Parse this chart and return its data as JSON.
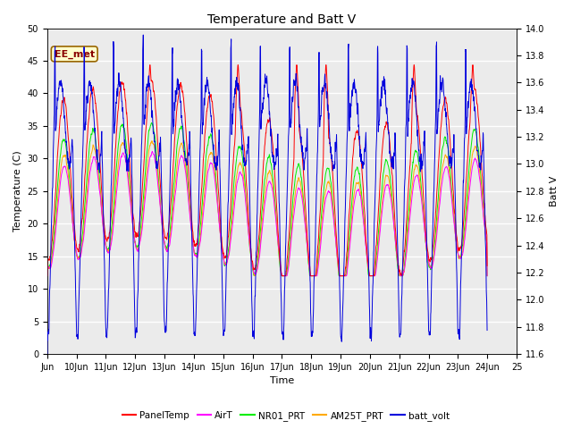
{
  "title": "Temperature and Batt V",
  "xlabel": "Time",
  "ylabel_left": "Temperature (C)",
  "ylabel_right": "Batt V",
  "station_label": "EE_met",
  "x_tick_labels": [
    "Jun",
    "10Jun",
    "11Jun",
    "12Jun",
    "13Jun",
    "14Jun",
    "15Jun",
    "16Jun",
    "17Jun",
    "18Jun",
    "19Jun",
    "20Jun",
    "21Jun",
    "22Jun",
    "23Jun",
    "24Jun",
    "25"
  ],
  "ylim_left": [
    0,
    50
  ],
  "ylim_right": [
    11.6,
    14.0
  ],
  "left_yticks": [
    0,
    5,
    10,
    15,
    20,
    25,
    30,
    35,
    40,
    45,
    50
  ],
  "right_yticks": [
    11.6,
    11.8,
    12.0,
    12.2,
    12.4,
    12.6,
    12.8,
    13.0,
    13.2,
    13.4,
    13.6,
    13.8,
    14.0
  ],
  "colors": {
    "PanelTemp": "#ff0000",
    "AirT": "#ff00ff",
    "NR01_PRT": "#00ee00",
    "AM25T_PRT": "#ffaa00",
    "batt_volt": "#0000dd"
  },
  "background_color": "#ffffff",
  "plot_bg_color": "#ebebeb",
  "grid_color": "#ffffff",
  "n_days": 15,
  "pts_per_day": 144,
  "title_fontsize": 10,
  "label_fontsize": 8,
  "tick_fontsize": 7
}
